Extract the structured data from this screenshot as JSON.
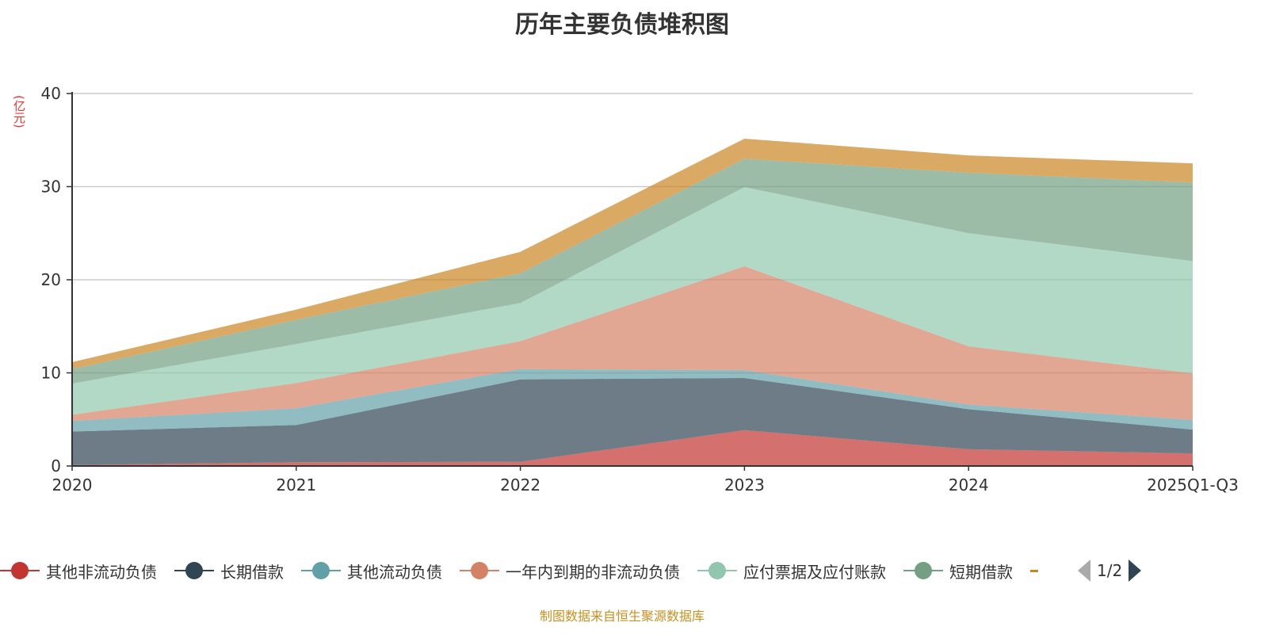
{
  "chart_data": {
    "type": "area",
    "stacked": true,
    "title": "历年主要负债堆积图",
    "ylabel": "(亿元)",
    "xlabel": "",
    "ylim": [
      0,
      40
    ],
    "yticks": [
      0,
      10,
      20,
      30,
      40
    ],
    "grid": true,
    "legend_position": "bottom",
    "categories": [
      "2020",
      "2021",
      "2022",
      "2023",
      "2024",
      "2025Q1-Q3"
    ],
    "series": [
      {
        "name": "其他非流动负债",
        "color": "#c23531",
        "values": [
          0.1,
          0.4,
          0.45,
          3.85,
          1.8,
          1.35
        ]
      },
      {
        "name": "长期借款",
        "color": "#2f4554",
        "values": [
          3.6,
          4.0,
          8.85,
          5.6,
          4.3,
          2.55
        ]
      },
      {
        "name": "其他流动负债",
        "color": "#61a0a8",
        "values": [
          1.15,
          1.8,
          1.1,
          0.85,
          0.5,
          1.05
        ]
      },
      {
        "name": "一年内到期的非流动负债",
        "color": "#d48265",
        "values": [
          0.65,
          2.7,
          3.0,
          11.15,
          6.25,
          5.0
        ]
      },
      {
        "name": "应付票据及应付账款",
        "color": "#91c7ae",
        "values": [
          3.35,
          4.2,
          4.1,
          8.5,
          12.15,
          12.05
        ]
      },
      {
        "name": "短期借款",
        "color": "#749f83",
        "values": [
          1.55,
          2.6,
          3.2,
          3.05,
          6.5,
          8.45
        ]
      },
      {
        "name": "",
        "color": "#ca8622",
        "values": [
          0.75,
          1.1,
          2.3,
          2.15,
          1.85,
          2.05
        ]
      }
    ]
  },
  "legend": {
    "page": "1/2"
  },
  "source": "制图数据来自恒生聚源数据库"
}
